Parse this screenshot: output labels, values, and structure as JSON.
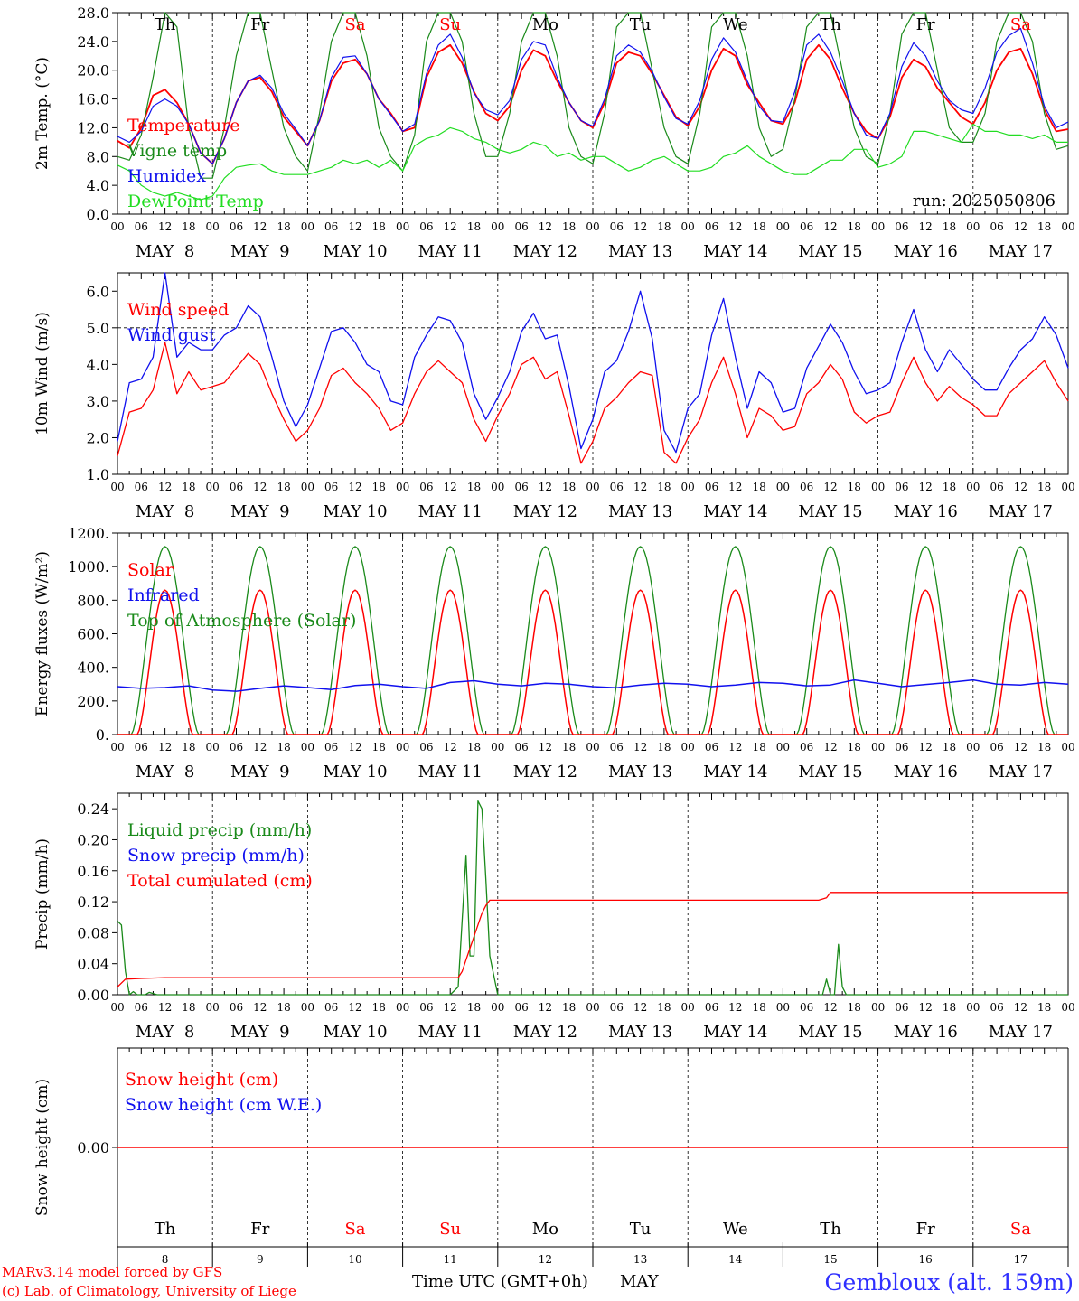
{
  "colors": {
    "red": "#ff0000",
    "green": "#1a8a1a",
    "lime": "#22dd22",
    "blue": "#1010ee",
    "black": "#000000",
    "station_blue": "#3030ff"
  },
  "day_labels": [
    "Th",
    "Fr",
    "Sa",
    "Su",
    "Mo",
    "Tu",
    "We",
    "Th",
    "Fr",
    "Sa"
  ],
  "weekend_day_indices": [
    2,
    3,
    9
  ],
  "date_labels": [
    "MAY  8",
    "MAY  9",
    "MAY 10",
    "MAY 11",
    "MAY 12",
    "MAY 13",
    "MAY 14",
    "MAY 15",
    "MAY 16",
    "MAY 17"
  ],
  "hour_labels": [
    "00",
    "06",
    "12",
    "18"
  ],
  "bottom_day_numbers": [
    "8",
    "9",
    "10",
    "11",
    "12",
    "13",
    "14",
    "15",
    "16",
    "17"
  ],
  "footer": {
    "model_line": "MARv3.14 model forced by GFS",
    "copyright_line": "(c) Lab. of Climatology, University of Liege",
    "time_axis_label": "Time UTC (GMT+0h)",
    "month_label": "MAY",
    "station_label": "Gembloux (alt. 159m)"
  },
  "chart_data": [
    {
      "type": "line",
      "id": "temp",
      "ylabel": "2m Temp. (°C)",
      "ylim": [
        0,
        28
      ],
      "yticks": [
        "0.0",
        "4.0",
        "8.0",
        "12.0",
        "16.0",
        "20.0",
        "24.0",
        "28.0"
      ],
      "run_label": "run: 2025050806",
      "legend_placement": "left",
      "x_unit": "hours since May 8 00 UTC",
      "x": [
        0,
        3,
        6,
        9,
        12,
        15,
        18,
        21,
        24,
        27,
        30,
        33,
        36,
        39,
        42,
        45,
        48,
        51,
        54,
        57,
        60,
        63,
        66,
        69,
        72,
        75,
        78,
        81,
        84,
        87,
        90,
        93,
        96,
        99,
        102,
        105,
        108,
        111,
        114,
        117,
        120,
        123,
        126,
        129,
        132,
        135,
        138,
        141,
        144,
        147,
        150,
        153,
        156,
        159,
        162,
        165,
        168,
        171,
        174,
        177,
        180,
        183,
        186,
        189,
        192,
        195,
        198,
        201,
        204,
        207,
        210,
        213,
        216,
        219,
        222,
        225,
        228,
        231,
        234,
        237,
        240
      ],
      "series": [
        {
          "name": "Temperature",
          "color": "red",
          "values": [
            10.2,
            9.2,
            12.0,
            16.5,
            17.3,
            15.5,
            12.5,
            8.5,
            7.0,
            10.5,
            15.5,
            18.5,
            19.0,
            17.0,
            13.5,
            11.5,
            9.5,
            13.0,
            18.5,
            21.0,
            21.5,
            19.5,
            16.0,
            14.0,
            11.5,
            12.0,
            19.0,
            22.5,
            23.5,
            21.0,
            17.0,
            14.0,
            13.0,
            15.0,
            20.0,
            22.8,
            22.0,
            18.5,
            15.5,
            13.0,
            12.0,
            15.5,
            21.0,
            22.5,
            22.0,
            19.5,
            16.5,
            13.5,
            12.3,
            15.0,
            20.0,
            23.0,
            22.0,
            18.0,
            15.5,
            13.0,
            12.5,
            15.5,
            21.5,
            23.5,
            21.5,
            17.5,
            14.0,
            11.5,
            10.5,
            13.5,
            19.0,
            21.5,
            20.5,
            17.5,
            15.5,
            13.5,
            12.5,
            15.5,
            20.0,
            22.5,
            23.0,
            19.5,
            14.5,
            11.5,
            11.8
          ]
        },
        {
          "name": "Vigne temp",
          "color": "green",
          "values": [
            8.0,
            7.5,
            11.0,
            19.0,
            28.0,
            26.0,
            12.0,
            5.0,
            5.0,
            12.0,
            22.0,
            28.0,
            28.0,
            20.0,
            12.0,
            8.0,
            6.0,
            14.0,
            24.0,
            28.0,
            28.0,
            22.0,
            12.0,
            8.0,
            6.0,
            11.0,
            24.0,
            28.0,
            28.0,
            24.0,
            14.0,
            8.0,
            8.0,
            14.0,
            24.0,
            28.0,
            28.0,
            22.0,
            12.0,
            8.0,
            7.0,
            14.0,
            26.0,
            28.0,
            28.0,
            20.0,
            12.0,
            8.0,
            7.0,
            14.0,
            26.0,
            28.0,
            28.0,
            22.0,
            12.0,
            8.0,
            9.0,
            16.0,
            26.0,
            28.0,
            28.0,
            20.0,
            12.0,
            8.0,
            7.0,
            14.0,
            25.0,
            28.0,
            28.0,
            20.0,
            12.0,
            10.0,
            10.0,
            14.0,
            24.0,
            28.0,
            28.0,
            24.0,
            14.0,
            9.0,
            9.5
          ]
        },
        {
          "name": "Humidex",
          "color": "blue",
          "values": [
            10.8,
            10.0,
            11.5,
            15.0,
            16.0,
            15.0,
            12.5,
            8.5,
            7.0,
            10.5,
            15.5,
            18.5,
            19.3,
            17.5,
            14.0,
            11.8,
            9.5,
            13.0,
            19.0,
            21.8,
            22.0,
            19.5,
            16.0,
            13.8,
            11.5,
            12.5,
            19.5,
            23.5,
            25.0,
            21.8,
            16.8,
            14.5,
            13.8,
            15.8,
            21.5,
            24.0,
            23.5,
            19.0,
            15.5,
            13.0,
            12.2,
            16.0,
            22.0,
            23.5,
            22.5,
            19.8,
            16.3,
            13.3,
            12.5,
            15.8,
            21.5,
            24.5,
            22.5,
            18.5,
            15.0,
            13.0,
            12.8,
            17.0,
            23.5,
            25.0,
            22.5,
            18.5,
            14.0,
            11.0,
            10.5,
            14.0,
            20.5,
            23.8,
            22.0,
            18.5,
            15.8,
            14.5,
            14.0,
            17.5,
            22.5,
            24.8,
            25.8,
            21.0,
            15.0,
            12.0,
            12.8
          ]
        },
        {
          "name": "DewPoint Temp",
          "color": "lime",
          "values": [
            6.8,
            6.0,
            4.0,
            3.0,
            2.5,
            3.0,
            2.5,
            2.0,
            2.5,
            5.0,
            6.5,
            6.8,
            7.0,
            6.0,
            5.5,
            5.5,
            5.5,
            6.0,
            6.5,
            7.5,
            7.0,
            7.5,
            6.5,
            7.5,
            6.0,
            9.5,
            10.5,
            11.0,
            12.0,
            11.5,
            10.5,
            10.0,
            9.0,
            8.5,
            9.0,
            10.0,
            9.5,
            8.0,
            8.5,
            7.5,
            8.0,
            8.0,
            7.0,
            6.0,
            6.5,
            7.5,
            8.0,
            7.0,
            6.0,
            6.0,
            6.5,
            8.0,
            8.5,
            9.5,
            8.0,
            7.0,
            6.0,
            5.5,
            5.5,
            6.5,
            7.5,
            7.5,
            9.0,
            9.0,
            6.5,
            7.0,
            8.0,
            11.5,
            11.5,
            11.0,
            10.5,
            10.0,
            12.5,
            11.5,
            11.5,
            11.0,
            11.0,
            10.5,
            11.0,
            10.0,
            10.0
          ]
        }
      ]
    },
    {
      "type": "line",
      "id": "wind",
      "ylabel": "10m Wind (m/s)",
      "ylim": [
        1,
        6.5
      ],
      "yticks": [
        "1.0",
        "2.0",
        "3.0",
        "4.0",
        "5.0",
        "6.0"
      ],
      "reference_line": 5,
      "legend_placement": "left",
      "x_unit": "hours since May 8 00 UTC",
      "x": [
        0,
        3,
        6,
        9,
        12,
        15,
        18,
        21,
        24,
        27,
        30,
        33,
        36,
        39,
        42,
        45,
        48,
        51,
        54,
        57,
        60,
        63,
        66,
        69,
        72,
        75,
        78,
        81,
        84,
        87,
        90,
        93,
        96,
        99,
        102,
        105,
        108,
        111,
        114,
        117,
        120,
        123,
        126,
        129,
        132,
        135,
        138,
        141,
        144,
        147,
        150,
        153,
        156,
        159,
        162,
        165,
        168,
        171,
        174,
        177,
        180,
        183,
        186,
        189,
        192,
        195,
        198,
        201,
        204,
        207,
        210,
        213,
        216,
        219,
        222,
        225,
        228,
        231,
        234,
        237,
        240
      ],
      "series": [
        {
          "name": "Wind speed",
          "color": "red",
          "values": [
            1.5,
            2.7,
            2.8,
            3.3,
            4.6,
            3.2,
            3.8,
            3.3,
            3.4,
            3.5,
            3.9,
            4.3,
            4.0,
            3.2,
            2.5,
            1.9,
            2.2,
            2.8,
            3.7,
            3.9,
            3.5,
            3.2,
            2.8,
            2.2,
            2.4,
            3.2,
            3.8,
            4.1,
            3.8,
            3.5,
            2.5,
            1.9,
            2.6,
            3.2,
            4.0,
            4.2,
            3.6,
            3.8,
            2.6,
            1.3,
            1.9,
            2.8,
            3.1,
            3.5,
            3.8,
            3.7,
            1.6,
            1.3,
            2.0,
            2.5,
            3.5,
            4.2,
            3.2,
            2.0,
            2.8,
            2.6,
            2.2,
            2.3,
            3.2,
            3.5,
            4.0,
            3.6,
            2.7,
            2.4,
            2.6,
            2.7,
            3.5,
            4.2,
            3.5,
            3.0,
            3.4,
            3.1,
            2.9,
            2.6,
            2.6,
            3.2,
            3.5,
            3.8,
            4.1,
            3.5,
            3.0
          ]
        },
        {
          "name": "Wind gust",
          "color": "blue",
          "values": [
            1.9,
            3.5,
            3.6,
            4.2,
            6.5,
            4.2,
            4.6,
            4.4,
            4.4,
            4.8,
            5.0,
            5.6,
            5.3,
            4.2,
            3.0,
            2.3,
            2.9,
            3.9,
            4.9,
            5.0,
            4.6,
            4.0,
            3.8,
            3.0,
            2.9,
            4.2,
            4.8,
            5.3,
            5.2,
            4.6,
            3.2,
            2.5,
            3.1,
            3.8,
            4.9,
            5.4,
            4.7,
            4.8,
            3.4,
            1.7,
            2.5,
            3.8,
            4.1,
            4.9,
            6.0,
            4.7,
            2.2,
            1.6,
            2.8,
            3.2,
            4.8,
            5.8,
            4.2,
            2.8,
            3.8,
            3.5,
            2.7,
            2.8,
            3.9,
            4.5,
            5.1,
            4.6,
            3.8,
            3.2,
            3.3,
            3.5,
            4.6,
            5.5,
            4.4,
            3.8,
            4.4,
            4.0,
            3.6,
            3.3,
            3.3,
            3.9,
            4.4,
            4.7,
            5.3,
            4.8,
            3.9
          ]
        }
      ]
    },
    {
      "type": "line",
      "id": "energy",
      "ylabel": "Energy fluxes (W/m²)",
      "ylim": [
        0,
        1200
      ],
      "yticks": [
        "0.",
        "200.",
        "400.",
        "600.",
        "800.",
        "1000.",
        "1200."
      ],
      "legend_placement": "left",
      "x_unit": "hours since May 8 00 UTC",
      "solar_peak_W_m2": 860,
      "toa_peak_W_m2": 1120,
      "solar_daylight_hours_utc": [
        5,
        19
      ],
      "toa_daylight_hours_utc": [
        3.5,
        20.5
      ],
      "series": [
        {
          "name": "Solar",
          "color": "red",
          "daily_peak": 860
        },
        {
          "name": "Infrared",
          "color": "blue",
          "x": [
            0,
            6,
            12,
            18,
            24,
            30,
            36,
            42,
            48,
            54,
            60,
            66,
            72,
            78,
            84,
            90,
            96,
            102,
            108,
            114,
            120,
            126,
            132,
            138,
            144,
            150,
            156,
            162,
            168,
            174,
            180,
            186,
            192,
            198,
            204,
            210,
            216,
            222,
            228,
            234,
            240
          ],
          "values": [
            285,
            275,
            280,
            290,
            265,
            258,
            275,
            290,
            280,
            268,
            292,
            300,
            285,
            275,
            310,
            320,
            300,
            290,
            305,
            300,
            285,
            278,
            295,
            305,
            300,
            285,
            295,
            310,
            305,
            290,
            295,
            325,
            305,
            285,
            298,
            310,
            325,
            300,
            295,
            310,
            300
          ]
        },
        {
          "name": "Top of Atmosphere (Solar)",
          "color": "green",
          "daily_peak": 1120
        }
      ]
    },
    {
      "type": "line",
      "id": "precip",
      "ylabel": "Precip (mm/h)",
      "ylim": [
        0,
        0.26
      ],
      "yticks": [
        "0.00",
        "0.04",
        "0.08",
        "0.12",
        "0.16",
        "0.20",
        "0.24"
      ],
      "legend_placement": "left",
      "x_unit": "hours since May 8 00 UTC",
      "series": [
        {
          "name": "Liquid precip (mm/h)",
          "color": "green",
          "x": [
            0,
            1,
            2,
            3,
            4,
            5,
            7,
            8,
            10,
            12,
            72,
            80,
            84,
            86,
            88,
            89,
            90,
            91,
            92,
            93,
            94,
            96,
            97,
            98,
            100,
            168,
            178,
            179,
            180,
            181,
            182,
            183,
            184,
            240
          ],
          "values": [
            0.095,
            0.09,
            0.03,
            0.0,
            0.004,
            0.0,
            0.0,
            0.003,
            0.0,
            0.0,
            0.0,
            0.0,
            0.0,
            0.01,
            0.18,
            0.05,
            0.05,
            0.25,
            0.24,
            0.15,
            0.05,
            0.0,
            0.0,
            0.0,
            0.0,
            0.0,
            0.0,
            0.02,
            0.0,
            0.0,
            0.065,
            0.01,
            0.0,
            0.0
          ]
        },
        {
          "name": "Snow precip (mm/h)",
          "color": "blue",
          "x": [],
          "values": []
        },
        {
          "name": "Total cumulated (cm)",
          "color": "red",
          "x": [
            0,
            2,
            6,
            12,
            30,
            60,
            86,
            87,
            88,
            89,
            90,
            91,
            92,
            93,
            94,
            95,
            96,
            177,
            179,
            180,
            240
          ],
          "values": [
            0.01,
            0.02,
            0.021,
            0.022,
            0.022,
            0.022,
            0.022,
            0.03,
            0.045,
            0.06,
            0.075,
            0.09,
            0.105,
            0.115,
            0.122,
            0.122,
            0.122,
            0.122,
            0.125,
            0.132,
            0.132
          ]
        }
      ]
    },
    {
      "type": "line",
      "id": "snow",
      "ylabel": "Snow height (cm)",
      "yticks": [
        "0.00"
      ],
      "legend_placement": "left",
      "x_unit": "hours since May 8 00 UTC",
      "series": [
        {
          "name": "Snow height (cm)",
          "color": "red",
          "x": [
            0,
            240
          ],
          "values": [
            0,
            0
          ]
        },
        {
          "name": "Snow height (cm W.E.)",
          "color": "blue",
          "x": [],
          "values": []
        }
      ]
    }
  ]
}
